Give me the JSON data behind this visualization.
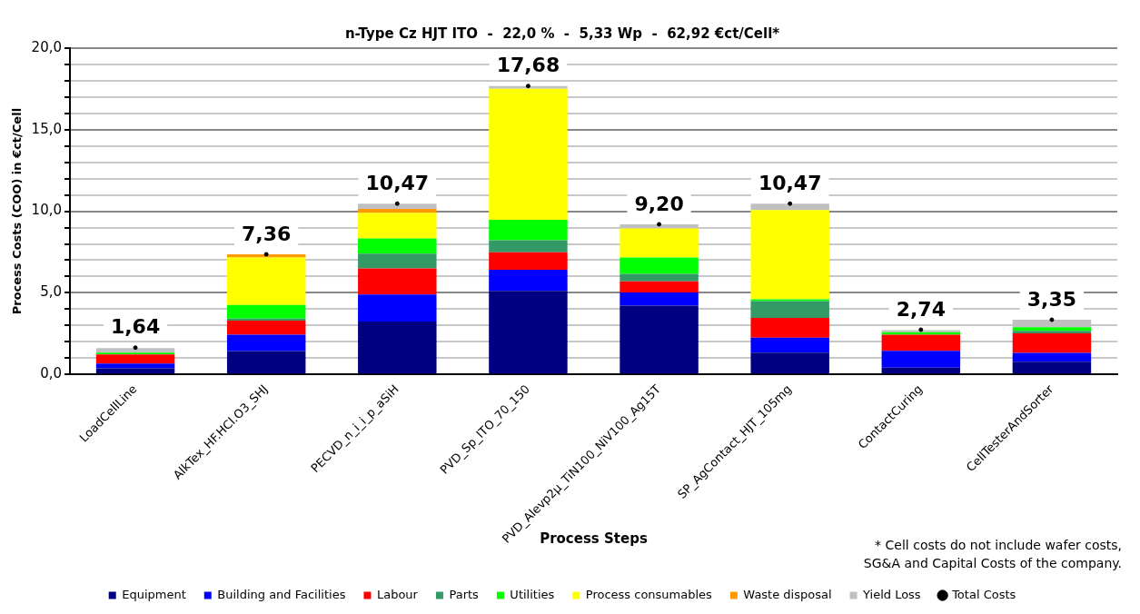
{
  "chart_data": {
    "type": "bar",
    "stacked": true,
    "title": "n-Type Cz HJT ITO  -  22,0 %  -  5,33 Wp  -  62,92 €ct/Cell*",
    "xlabel": "Process Steps",
    "ylabel": "Process Costs (COO) in €ct/Cell",
    "categories": [
      "LoadCellLine",
      "AlkTex_HF.HCl.O3_SHJ",
      "PECVD_n_i_i_p_aSiH",
      "PVD_Sp_ITO_70_150",
      "PVD_Alevp2µ_TiN100_NiV100_Ag15T",
      "SP_AgContact_HJT_105mg",
      "ContactCuring",
      "CellTesterAndSorter"
    ],
    "series": [
      {
        "name": "Equipment",
        "color": "#000080",
        "values": [
          0.37,
          1.43,
          3.24,
          5.12,
          4.22,
          1.34,
          0.42,
          0.77
        ]
      },
      {
        "name": "Building and Facilities",
        "color": "#0000ff",
        "values": [
          0.3,
          1.01,
          1.66,
          1.3,
          0.8,
          0.91,
          1.03,
          0.55
        ]
      },
      {
        "name": "Labour",
        "color": "#ff0000",
        "values": [
          0.55,
          0.86,
          1.6,
          1.07,
          0.68,
          1.21,
          0.99,
          1.19
        ]
      },
      {
        "name": "Parts",
        "color": "#339966",
        "values": [
          null,
          0.12,
          0.9,
          0.74,
          0.47,
          1.03,
          null,
          0.16
        ]
      },
      {
        "name": "Utilities",
        "color": "#00ff00",
        "values": [
          0.12,
          0.84,
          0.94,
          1.24,
          0.99,
          0.11,
          0.15,
          0.22
        ]
      },
      {
        "name": "Process consumables",
        "color": "#ffff00",
        "values": [
          null,
          2.91,
          1.56,
          8.04,
          1.79,
          5.47,
          null,
          null
        ]
      },
      {
        "name": "Waste disposal",
        "color": "#ff9900",
        "values": [
          null,
          0.19,
          0.24,
          null,
          null,
          null,
          null,
          null
        ]
      },
      {
        "name": "Yield Loss",
        "color": "#c0c0c0",
        "values": [
          0.27,
          null,
          0.33,
          0.17,
          0.25,
          0.4,
          0.12,
          0.46
        ]
      },
      {
        "name": "Total Costs",
        "type": "scatter",
        "color": "#000000",
        "marker": "circle",
        "x": [
          "LoadCellLine",
          "AlkTex_HF.HCl.O3_SHJ",
          "PECVD_n_i_i_p_aSiH",
          "PVD_Sp_ITO_70_150",
          "PVD_Alevp2µ_TiN100_NiV100_Ag15T",
          "SP_AgContact_HJT_105mg",
          "ContactCuring",
          "CellTesterAndSorter"
        ],
        "values": [
          1.64,
          7.36,
          10.47,
          17.68,
          9.2,
          10.47,
          2.74,
          3.35
        ],
        "value_labels": [
          "1,64",
          "7,36",
          "10,47",
          "17,68",
          "9,20",
          "10,47",
          "2,74",
          "3,35"
        ]
      }
    ],
    "ylim": [
      0,
      20
    ],
    "yticks": [
      {
        "value": 0,
        "label": "0,0"
      },
      {
        "value": 1,
        "label": null
      },
      {
        "value": 2,
        "label": null
      },
      {
        "value": 3,
        "label": null
      },
      {
        "value": 4,
        "label": null
      },
      {
        "value": 5,
        "label": "5,0"
      },
      {
        "value": 6,
        "label": null
      },
      {
        "value": 7,
        "label": null
      },
      {
        "value": 8,
        "label": null
      },
      {
        "value": 9,
        "label": null
      },
      {
        "value": 10,
        "label": "10,0"
      },
      {
        "value": 11,
        "label": null
      },
      {
        "value": 12,
        "label": null
      },
      {
        "value": 13,
        "label": null
      },
      {
        "value": 14,
        "label": null
      },
      {
        "value": 15,
        "label": "15,0"
      },
      {
        "value": 16,
        "label": null
      },
      {
        "value": 17,
        "label": null
      },
      {
        "value": 18,
        "label": null
      },
      {
        "value": 19,
        "label": null
      },
      {
        "value": 20,
        "label": "20,0"
      }
    ],
    "grid": "y",
    "legend": "bottom",
    "annotations": [
      "* Cell costs do not include wafer costs, SG&A and Capital Costs of the company."
    ]
  }
}
